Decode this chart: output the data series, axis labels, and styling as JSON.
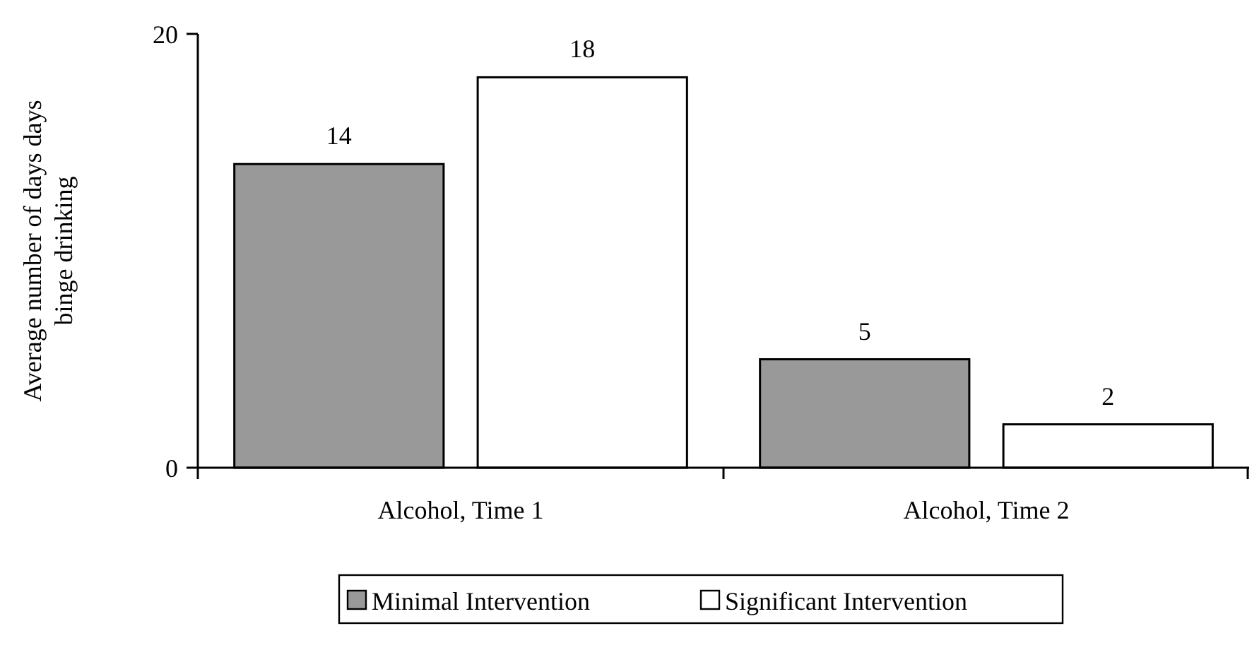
{
  "chart_data": {
    "type": "bar",
    "ylabel": "Average number of days days binge drinking",
    "categories": [
      "Alcohol, Time 1",
      "Alcohol, Time 2"
    ],
    "series": [
      {
        "name": "Minimal Intervention",
        "color": "#999999",
        "values": [
          14,
          5
        ]
      },
      {
        "name": "Significant Intervention",
        "color": "#ffffff",
        "values": [
          18,
          2
        ]
      }
    ],
    "ylim": [
      0,
      20
    ],
    "yticks": [
      0,
      20
    ],
    "data_labels": true,
    "grid": false,
    "legend": "bottom"
  }
}
